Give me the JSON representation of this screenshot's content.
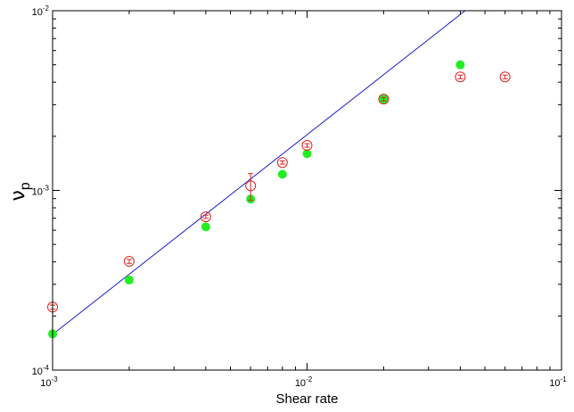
{
  "chart_data": {
    "type": "scatter",
    "title": "",
    "xlabel": "Shear rate",
    "ylabel": "ν",
    "ylabel_subscript": "p",
    "xscale": "log",
    "yscale": "log",
    "xlim": [
      0.001,
      0.1
    ],
    "ylim": [
      0.0001,
      0.01
    ],
    "grid": false,
    "x_ticks": [
      {
        "value": 0.001,
        "base": "10",
        "exp": "-3"
      },
      {
        "value": 0.01,
        "base": "10",
        "exp": "-2"
      },
      {
        "value": 0.1,
        "base": "10",
        "exp": "-1"
      }
    ],
    "y_ticks": [
      {
        "value": 0.0001,
        "base": "10",
        "exp": "-4"
      },
      {
        "value": 0.001,
        "base": "10",
        "exp": "-3"
      },
      {
        "value": 0.01,
        "base": "10",
        "exp": "-2"
      }
    ],
    "series": [
      {
        "kind": "open-circle-errorbar",
        "color": "#e02020",
        "points": [
          {
            "x": 0.001,
            "y": 0.000224,
            "err": 6e-06
          },
          {
            "x": 0.002,
            "y": 0.000403,
            "err": 1e-05
          },
          {
            "x": 0.004,
            "y": 0.000713,
            "err": 1.5e-05
          },
          {
            "x": 0.006,
            "y": 0.00106,
            "err": 0.00018
          },
          {
            "x": 0.008,
            "y": 0.00143,
            "err": 3e-05
          },
          {
            "x": 0.01,
            "y": 0.00178,
            "err": 4e-05
          },
          {
            "x": 0.02,
            "y": 0.00322,
            "err": 7e-05
          },
          {
            "x": 0.04,
            "y": 0.00428,
            "err": 0.0001
          },
          {
            "x": 0.06,
            "y": 0.00428,
            "err": 0.0001
          }
        ]
      },
      {
        "kind": "filled-circle",
        "color": "#22ee22",
        "points": [
          {
            "x": 0.001,
            "y": 0.000159
          },
          {
            "x": 0.002,
            "y": 0.000317
          },
          {
            "x": 0.004,
            "y": 0.000627
          },
          {
            "x": 0.006,
            "y": 0.000895
          },
          {
            "x": 0.008,
            "y": 0.00123
          },
          {
            "x": 0.01,
            "y": 0.0016
          },
          {
            "x": 0.02,
            "y": 0.00322
          },
          {
            "x": 0.04,
            "y": 0.005
          }
        ]
      },
      {
        "kind": "fit-line",
        "color": "#1a1acc",
        "points": [
          {
            "x": 0.001,
            "y": 0.000158
          },
          {
            "x": 0.0418,
            "y": 0.01
          }
        ]
      }
    ]
  }
}
